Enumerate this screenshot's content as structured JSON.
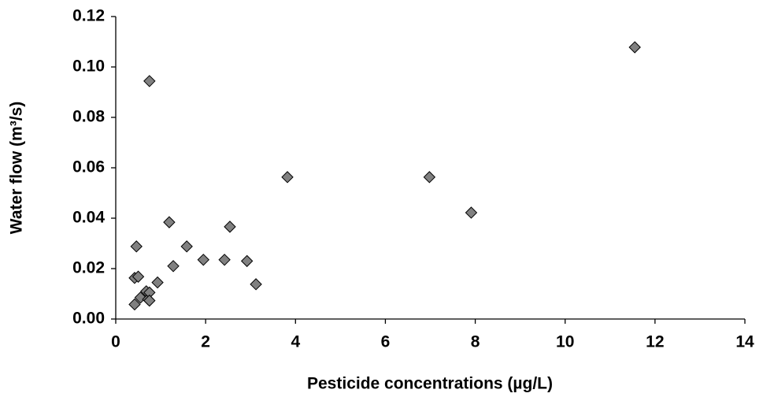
{
  "chart_data": {
    "type": "scatter",
    "x_label": "Pesticide concentrations (µg/L)",
    "y_label": "Water flow (m³/s)",
    "series": [
      {
        "color": "#808080",
        "x": [
          11.55,
          0.75,
          3.82,
          6.98,
          7.91,
          1.19,
          2.54,
          0.46,
          1.58,
          1.95,
          2.42,
          2.92,
          3.12,
          1.28,
          0.93,
          0.42,
          0.5,
          0.42,
          0.55,
          0.68,
          0.72,
          0.75,
          0.75
        ],
        "values": [
          0.1078,
          0.0944,
          0.0563,
          0.0563,
          0.0422,
          0.0384,
          0.0366,
          0.0288,
          0.0288,
          0.0235,
          0.0235,
          0.023,
          0.0138,
          0.021,
          0.0145,
          0.0163,
          0.0168,
          0.0058,
          0.0085,
          0.011,
          0.0078,
          0.0105,
          0.0073
        ]
      }
    ],
    "xlim": [
      0,
      14
    ],
    "xticks": [
      0,
      2,
      4,
      6,
      8,
      10,
      12,
      14
    ],
    "ylim": [
      0,
      0.12
    ],
    "yticks": [
      {
        "value": 0,
        "label": "0.00"
      },
      {
        "value": 0.02,
        "label": "0.02"
      },
      {
        "value": 0.04,
        "label": "0.04"
      },
      {
        "value": 0.06,
        "label": "0.06"
      },
      {
        "value": 0.08,
        "label": "0.08"
      },
      {
        "value": 0.1,
        "label": "0.10"
      },
      {
        "value": 0.12,
        "label": "0.12"
      }
    ]
  }
}
